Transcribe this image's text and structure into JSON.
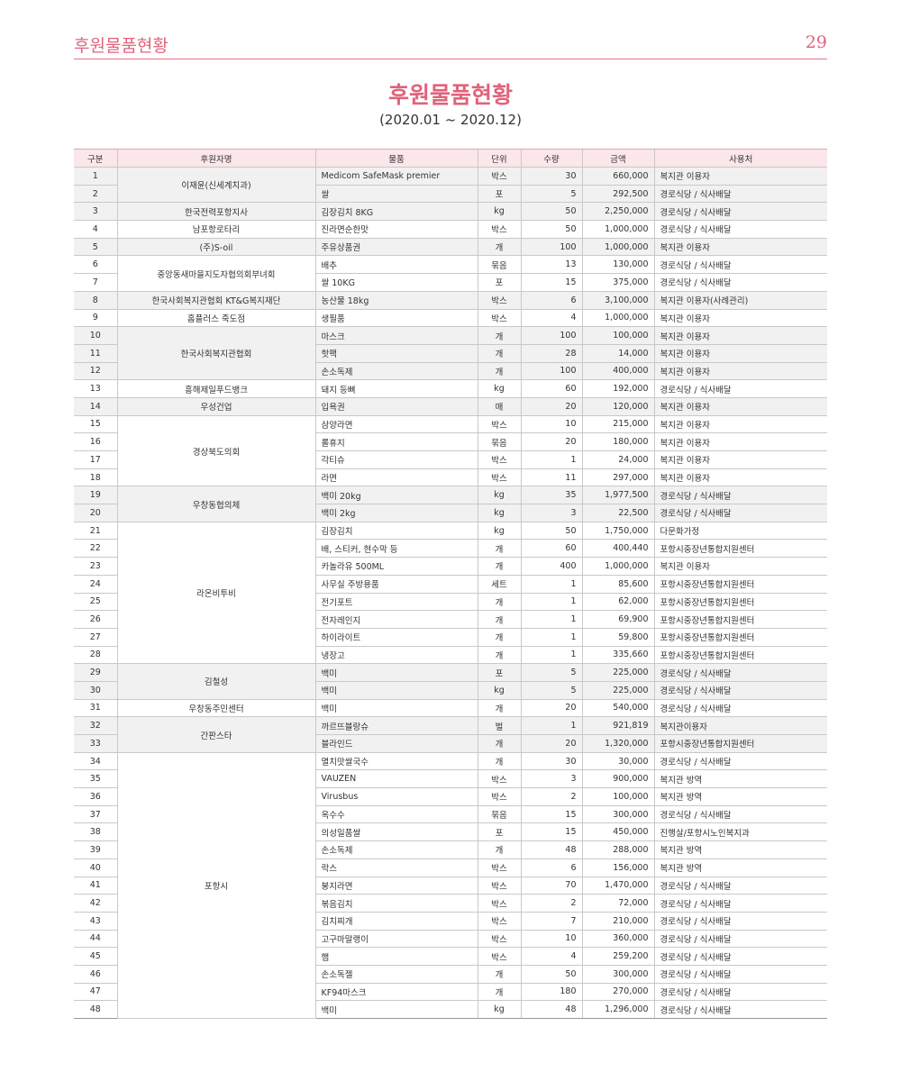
{
  "header": {
    "section_title": "후원물품현황",
    "page_number": "29"
  },
  "title": "후원물품현황",
  "period": "(2020.01 ~ 2020.12)",
  "table": {
    "headers": [
      "구분",
      "후원자명",
      "물품",
      "단위",
      "수량",
      "금액",
      "사용처"
    ],
    "groups": [
      {
        "donor": "이재윤(신세계치과)",
        "shade": true,
        "rows": [
          [
            "1",
            "Medicom SafeMask premier",
            "박스",
            "30",
            "660,000",
            "복지관 이용자"
          ],
          [
            "2",
            "쌀",
            "포",
            "5",
            "292,500",
            "경로식당 / 식사배달"
          ]
        ]
      },
      {
        "donor": "한국전력포항지사",
        "shade": true,
        "rows": [
          [
            "3",
            "김장김치 8KG",
            "kg",
            "50",
            "2,250,000",
            "경로식당 / 식사배달"
          ]
        ]
      },
      {
        "donor": "남포항로타리",
        "shade": false,
        "rows": [
          [
            "4",
            "진라면순한맛",
            "박스",
            "50",
            "1,000,000",
            "경로식당 / 식사배달"
          ]
        ]
      },
      {
        "donor": "(주)S-oil",
        "shade": true,
        "rows": [
          [
            "5",
            "주유상품권",
            "개",
            "100",
            "1,000,000",
            "복지관 이용자"
          ]
        ]
      },
      {
        "donor": "중앙동새마을지도자협의회부녀회",
        "shade": false,
        "rows": [
          [
            "6",
            "배추",
            "묶음",
            "13",
            "130,000",
            "경로식당 / 식사배달"
          ],
          [
            "7",
            "쌀 10KG",
            "포",
            "15",
            "375,000",
            "경로식당 / 식사배달"
          ]
        ]
      },
      {
        "donor": "한국사회복지관협회 KT&G복지재단",
        "shade": true,
        "rows": [
          [
            "8",
            "농산물 18kg",
            "박스",
            "6",
            "3,100,000",
            "복지관 이용자(사례관리)"
          ]
        ]
      },
      {
        "donor": "홈플러스 죽도점",
        "shade": false,
        "rows": [
          [
            "9",
            "생필품",
            "박스",
            "4",
            "1,000,000",
            "복지관 이용자"
          ]
        ]
      },
      {
        "donor": "한국사회복지관협회",
        "shade": true,
        "rows": [
          [
            "10",
            "마스크",
            "개",
            "100",
            "100,000",
            "복지관 이용자"
          ],
          [
            "11",
            "핫팩",
            "개",
            "28",
            "14,000",
            "복지관 이용자"
          ],
          [
            "12",
            "손소독제",
            "개",
            "100",
            "400,000",
            "복지관 이용자"
          ]
        ]
      },
      {
        "donor": "흥해제일푸드뱅크",
        "shade": false,
        "rows": [
          [
            "13",
            "돼지 등뼈",
            "kg",
            "60",
            "192,000",
            "경로식당 / 식사배달"
          ]
        ]
      },
      {
        "donor": "우성건업",
        "shade": true,
        "rows": [
          [
            "14",
            "입욕권",
            "매",
            "20",
            "120,000",
            "복지관 이용자"
          ]
        ]
      },
      {
        "donor": "경상북도의회",
        "shade": false,
        "rows": [
          [
            "15",
            "삼양라면",
            "박스",
            "10",
            "215,000",
            "복지관 이용자"
          ],
          [
            "16",
            "롤휴지",
            "묶음",
            "20",
            "180,000",
            "복지관 이용자"
          ],
          [
            "17",
            "각티슈",
            "박스",
            "1",
            "24,000",
            "복지관 이용자"
          ],
          [
            "18",
            "라면",
            "박스",
            "11",
            "297,000",
            "복지관 이용자"
          ]
        ]
      },
      {
        "donor": "우창동협의체",
        "shade": true,
        "rows": [
          [
            "19",
            "백미 20kg",
            "kg",
            "35",
            "1,977,500",
            "경로식당 / 식사배달"
          ],
          [
            "20",
            "백미 2kg",
            "kg",
            "3",
            "22,500",
            "경로식당 / 식사배달"
          ]
        ]
      },
      {
        "donor": "라온비투비",
        "shade": false,
        "rows": [
          [
            "21",
            "김장김치",
            "kg",
            "50",
            "1,750,000",
            "다문화가정"
          ],
          [
            "22",
            "배, 스티커, 현수막 등",
            "개",
            "60",
            "400,440",
            "포항시중장년통합지원센터"
          ],
          [
            "23",
            "카놀라유 500ML",
            "개",
            "400",
            "1,000,000",
            "복지관 이용자"
          ],
          [
            "24",
            "사무실 주방용품",
            "세트",
            "1",
            "85,600",
            "포항시중장년통합지원센터"
          ],
          [
            "25",
            "전기포트",
            "개",
            "1",
            "62,000",
            "포항시중장년통합지원센터"
          ],
          [
            "26",
            "전자레인지",
            "개",
            "1",
            "69,900",
            "포항시중장년통합지원센터"
          ],
          [
            "27",
            "하이라이트",
            "개",
            "1",
            "59,800",
            "포항시중장년통합지원센터"
          ],
          [
            "28",
            "냉장고",
            "개",
            "1",
            "335,660",
            "포항시중장년통합지원센터"
          ]
        ]
      },
      {
        "donor": "김철성",
        "shade": true,
        "rows": [
          [
            "29",
            "백미",
            "포",
            "5",
            "225,000",
            "경로식당 / 식사배달"
          ],
          [
            "30",
            "백미",
            "kg",
            "5",
            "225,000",
            "경로식당 / 식사배달"
          ]
        ]
      },
      {
        "donor": "우창동주민센터",
        "shade": false,
        "rows": [
          [
            "31",
            "백미",
            "개",
            "20",
            "540,000",
            "경로식당 / 식사배달"
          ]
        ]
      },
      {
        "donor": "간판스타",
        "shade": true,
        "rows": [
          [
            "32",
            "까르뜨블랑슈",
            "벌",
            "1",
            "921,819",
            "복지관이용자"
          ],
          [
            "33",
            "블라인드",
            "개",
            "20",
            "1,320,000",
            "포항시중장년통합지원센터"
          ]
        ]
      },
      {
        "donor": "포항시",
        "shade": false,
        "rows": [
          [
            "34",
            "멸치맛쌀국수",
            "개",
            "30",
            "30,000",
            "경로식당 / 식사배달"
          ],
          [
            "35",
            "VAUZEN",
            "박스",
            "3",
            "900,000",
            "복지관 방역"
          ],
          [
            "36",
            "Virusbus",
            "박스",
            "2",
            "100,000",
            "복지관 방역"
          ],
          [
            "37",
            "옥수수",
            "묶음",
            "15",
            "300,000",
            "경로식당 / 식사배달"
          ],
          [
            "38",
            "의성일품쌀",
            "포",
            "15",
            "450,000",
            "진행살/포항시노인복지과"
          ],
          [
            "39",
            "손소독제",
            "개",
            "48",
            "288,000",
            "복지관 방역"
          ],
          [
            "40",
            "락스",
            "박스",
            "6",
            "156,000",
            "복지관 방역"
          ],
          [
            "41",
            "붕지라면",
            "박스",
            "70",
            "1,470,000",
            "경로식당 / 식사배달"
          ],
          [
            "42",
            "볶음김치",
            "박스",
            "2",
            "72,000",
            "경로식당 / 식사배달"
          ],
          [
            "43",
            "김치찌개",
            "박스",
            "7",
            "210,000",
            "경로식당 / 식사배달"
          ],
          [
            "44",
            "고구마말랭이",
            "박스",
            "10",
            "360,000",
            "경로식당 / 식사배달"
          ],
          [
            "45",
            "햄",
            "박스",
            "4",
            "259,200",
            "경로식당 / 식사배달"
          ],
          [
            "46",
            "손소독젤",
            "개",
            "50",
            "300,000",
            "경로식당 / 식사배달"
          ],
          [
            "47",
            "KF94마스크",
            "개",
            "180",
            "270,000",
            "경로식당 / 식사배달"
          ],
          [
            "48",
            "백미",
            "kg",
            "48",
            "1,296,000",
            "경로식당 / 식사배달"
          ]
        ]
      }
    ]
  }
}
